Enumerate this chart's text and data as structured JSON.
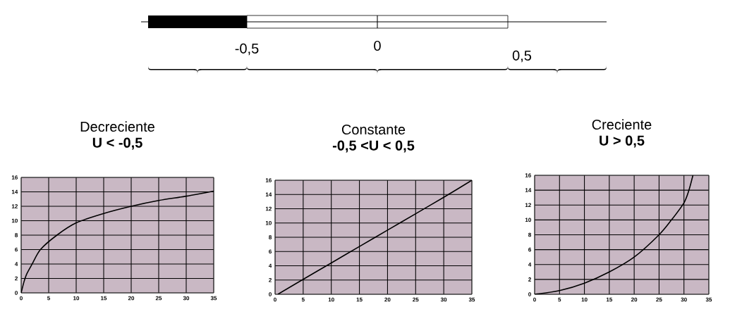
{
  "chart_data": [
    {
      "type": "other",
      "annotations": [
        "-0,5",
        "0",
        "0,5"
      ]
    },
    {
      "type": "line",
      "title": "Decreciente",
      "subtitle": "U < -0,5",
      "xlim": [
        0,
        35
      ],
      "ylim": [
        0,
        16
      ],
      "xticks": [
        0,
        5,
        10,
        15,
        20,
        25,
        30,
        35
      ],
      "yticks": [
        0,
        2,
        4,
        6,
        8,
        10,
        12,
        14,
        16
      ],
      "grid": true,
      "marker": "none",
      "series": [
        {
          "color": "#000000",
          "x": [
            0,
            0.5,
            1,
            2,
            3.5,
            6.5,
            10,
            15,
            20,
            25,
            30,
            35
          ],
          "values": [
            0,
            1.5,
            2.6,
            4,
            6,
            8,
            9.7,
            11,
            12,
            12.8,
            13.4,
            14.1
          ]
        }
      ]
    },
    {
      "type": "line",
      "title": "Constante",
      "subtitle": "-0,5 <U < 0,5",
      "xlim": [
        0,
        35
      ],
      "ylim": [
        0,
        16
      ],
      "xticks": [
        0,
        5,
        10,
        15,
        20,
        25,
        30,
        35
      ],
      "yticks": [
        0,
        2,
        4,
        6,
        8,
        10,
        12,
        14,
        16
      ],
      "grid": true,
      "marker": "none",
      "series": [
        {
          "color": "#000000",
          "x": [
            0.5,
            5,
            10,
            15,
            20,
            25,
            30,
            35
          ],
          "values": [
            0,
            2.1,
            4.4,
            6.7,
            9,
            11.3,
            13.6,
            16
          ]
        }
      ]
    },
    {
      "type": "line",
      "title": "Creciente",
      "subtitle": "U > 0,5",
      "xlim": [
        0,
        35
      ],
      "ylim": [
        0,
        16
      ],
      "xticks": [
        0,
        5,
        10,
        15,
        20,
        25,
        30,
        35
      ],
      "yticks": [
        0,
        2,
        4,
        6,
        8,
        10,
        12,
        14,
        16
      ],
      "grid": true,
      "marker": "none",
      "series": [
        {
          "color": "#000000",
          "x": [
            0,
            5,
            10,
            15,
            20,
            25,
            27.5,
            30,
            31,
            31.8
          ],
          "values": [
            0,
            0.5,
            1.5,
            3,
            5,
            8,
            10,
            12.3,
            14,
            16
          ]
        }
      ]
    }
  ]
}
